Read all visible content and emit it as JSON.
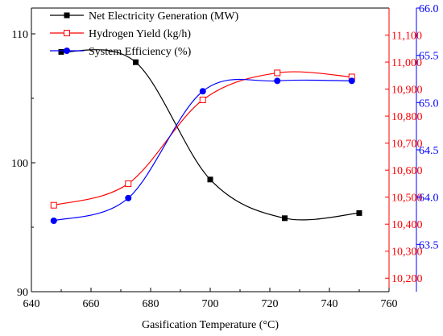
{
  "chart_data": {
    "type": "line",
    "xlabel": "Gasification Temperature (°C)",
    "xlim": [
      640,
      760
    ],
    "x_ticks": [
      "640",
      "660",
      "680",
      "700",
      "720",
      "740",
      "760"
    ],
    "axes": {
      "left": {
        "lim": [
          90,
          112
        ],
        "ticks": [
          "90",
          "100",
          "110"
        ],
        "color": "#000000"
      },
      "right1": {
        "lim": [
          10150,
          11200
        ],
        "ticks": [
          "10,200",
          "10,300",
          "10,400",
          "10,500",
          "10,600",
          "10,700",
          "10,800",
          "10,900",
          "11,000",
          "11,100"
        ],
        "color": "#ff0000"
      },
      "right2": {
        "lim": [
          63.0,
          66.0
        ],
        "ticks": [
          "63.5",
          "64.0",
          "64.5",
          "65.0",
          "65.5",
          "66.0"
        ],
        "color": "#0000ff"
      }
    },
    "series": [
      {
        "name": "Net Electricity Generation (MW)",
        "axis": "left",
        "color": "#000000",
        "marker": "square-filled",
        "x": [
          650,
          675,
          700,
          725,
          750
        ],
        "y": [
          108.6,
          107.8,
          98.7,
          95.7,
          96.1
        ]
      },
      {
        "name": "Hydrogen Yield (kg/h)",
        "axis": "right1",
        "color": "#ff0000",
        "marker": "square-open",
        "x": [
          647.5,
          672.5,
          697.5,
          722.5,
          747.5
        ],
        "y": [
          10470,
          10550,
          10860,
          10960,
          10945
        ]
      },
      {
        "name": "System Efficiency (%)",
        "axis": "right2",
        "color": "#0000ff",
        "marker": "circle-filled",
        "x": [
          647.5,
          672.5,
          697.5,
          722.5,
          747.5
        ],
        "y": [
          63.75,
          63.99,
          65.12,
          65.23,
          65.23
        ]
      }
    ],
    "legend_position": "top-left",
    "grid": false
  }
}
